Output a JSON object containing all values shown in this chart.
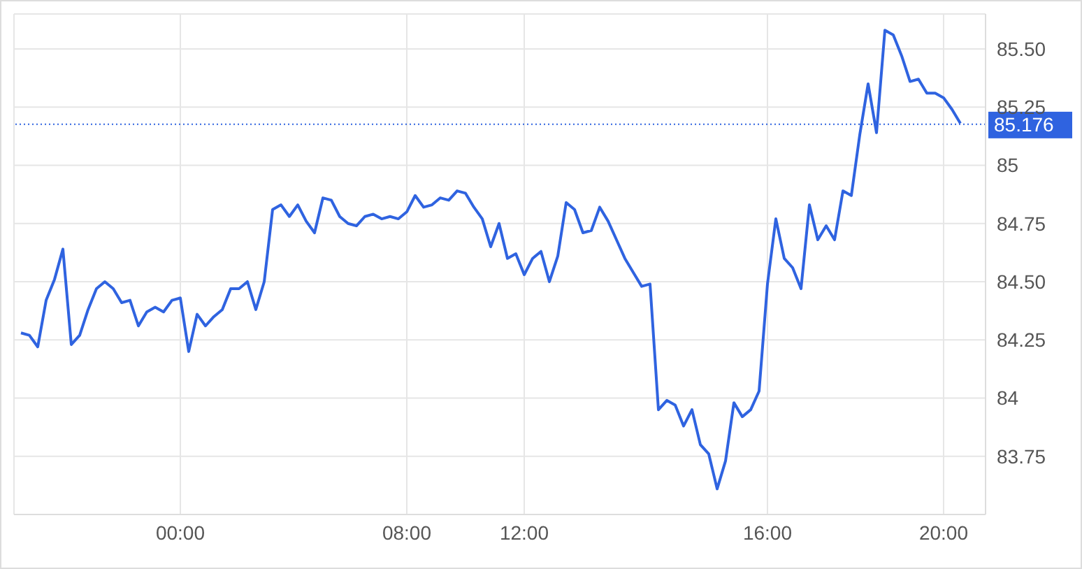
{
  "chart_data": {
    "type": "line",
    "categories": [
      null,
      null,
      null,
      null,
      null,
      null,
      null,
      null,
      null,
      null,
      null,
      null,
      null,
      null,
      null,
      null,
      null,
      null,
      null,
      "00:00",
      null,
      null,
      null,
      null,
      null,
      null,
      null,
      null,
      null,
      null,
      null,
      null,
      null,
      null,
      null,
      null,
      null,
      null,
      null,
      null,
      null,
      null,
      null,
      null,
      null,
      null,
      "08:00",
      null,
      null,
      null,
      null,
      null,
      null,
      null,
      null,
      null,
      null,
      null,
      null,
      null,
      "12:00",
      null,
      null,
      null,
      null,
      null,
      null,
      null,
      null,
      null,
      null,
      null,
      null,
      null,
      null,
      null,
      null,
      null,
      null,
      null,
      null,
      null,
      null,
      null,
      null,
      null,
      null,
      null,
      null,
      "16:00",
      null,
      null,
      null,
      null,
      null,
      null,
      null,
      null,
      null,
      null,
      null,
      null,
      null,
      null,
      null,
      null,
      null,
      null,
      null,
      null,
      "20:00",
      null,
      null
    ],
    "series": [
      {
        "color": "#2f63e0",
        "values": [
          84.28,
          84.27,
          84.22,
          84.42,
          84.51,
          84.64,
          84.23,
          84.27,
          84.38,
          84.47,
          84.5,
          84.47,
          84.41,
          84.42,
          84.31,
          84.37,
          84.39,
          84.37,
          84.42,
          84.43,
          84.2,
          84.36,
          84.31,
          84.35,
          84.38,
          84.47,
          84.47,
          84.5,
          84.38,
          84.5,
          84.81,
          84.83,
          84.78,
          84.83,
          84.76,
          84.71,
          84.86,
          84.85,
          84.78,
          84.75,
          84.74,
          84.78,
          84.79,
          84.77,
          84.78,
          84.77,
          84.8,
          84.87,
          84.82,
          84.83,
          84.86,
          84.85,
          84.89,
          84.88,
          84.82,
          84.77,
          84.65,
          84.75,
          84.6,
          84.62,
          84.53,
          84.6,
          84.63,
          84.5,
          84.61,
          84.84,
          84.81,
          84.71,
          84.72,
          84.82,
          84.76,
          84.68,
          84.6,
          84.54,
          84.48,
          84.49,
          83.95,
          83.99,
          83.97,
          83.88,
          83.95,
          83.8,
          83.76,
          83.61,
          83.73,
          83.98,
          83.92,
          83.95,
          84.03,
          84.49,
          84.77,
          84.6,
          84.56,
          84.47,
          84.83,
          84.68,
          84.74,
          84.68,
          84.89,
          84.87,
          85.13,
          85.35,
          85.14,
          85.58,
          85.56,
          85.47,
          85.36,
          85.37,
          85.31,
          85.31,
          85.29,
          85.24,
          85.18
        ]
      }
    ],
    "ylim": [
      83.5,
      85.65
    ],
    "yticks": [
      {
        "value": 83.75,
        "label": "83.75"
      },
      84,
      {
        "value": 84.25,
        "label": "84.25"
      },
      {
        "value": 84.5,
        "label": "84.50"
      },
      {
        "value": 84.75,
        "label": "84.75"
      },
      85,
      {
        "value": 85.25,
        "label": "85.25"
      },
      {
        "value": 85.5,
        "label": "85.50"
      }
    ],
    "ref_lines": [
      {
        "axis": "y",
        "value": 85.176,
        "label": "85.176",
        "color": "#2f63e0",
        "line_style": "dotted"
      }
    ],
    "grid": true,
    "marker": "none",
    "line_style": "solid"
  }
}
